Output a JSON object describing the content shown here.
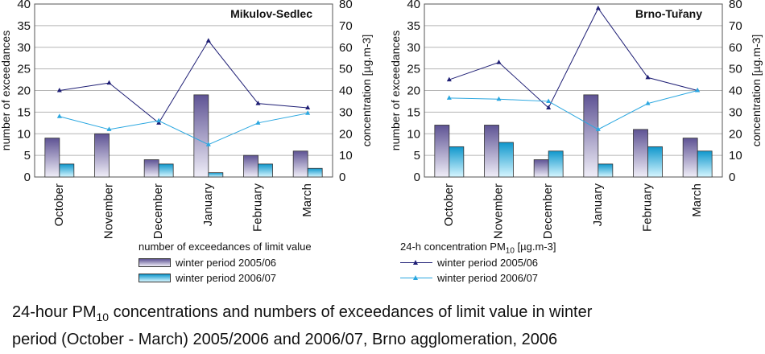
{
  "chart_data": [
    {
      "type": "bar+line",
      "title": "Mikulov-Sedlec",
      "categories": [
        "October",
        "November",
        "December",
        "January",
        "February",
        "March"
      ],
      "ylabel_left": "number of exceedances",
      "ylabel_right": "concentration [µg.m-3]",
      "ylim_left": [
        0,
        40
      ],
      "ylim_right": [
        0,
        80
      ],
      "yticks_left": [
        "0",
        "5",
        "10",
        "15",
        "20",
        "25",
        "30",
        "35",
        "40"
      ],
      "yticks_right": [
        "0",
        "10",
        "20",
        "30",
        "40",
        "50",
        "60",
        "70",
        "80"
      ],
      "bars": [
        {
          "name": "winter period 2005/06",
          "values": [
            9,
            10,
            4,
            19,
            5,
            6
          ]
        },
        {
          "name": "winter period 2006/07",
          "values": [
            3,
            0,
            3,
            1,
            3,
            2
          ]
        }
      ],
      "lines": [
        {
          "name": "winter period 2005/06",
          "values": [
            40,
            43.5,
            25,
            63,
            34,
            32
          ]
        },
        {
          "name": "winter period 2006/07",
          "values": [
            28,
            22,
            26,
            15,
            25,
            29.5
          ]
        }
      ]
    },
    {
      "type": "bar+line",
      "title": "Brno-Tuřany",
      "categories": [
        "October",
        "November",
        "December",
        "January",
        "February",
        "March"
      ],
      "ylabel_left": "number of exceedances",
      "ylabel_right": "concentration [µg.m-3]",
      "ylim_left": [
        0,
        40
      ],
      "ylim_right": [
        0,
        80
      ],
      "yticks_left": [
        "0",
        "5",
        "10",
        "15",
        "20",
        "25",
        "30",
        "35",
        "40"
      ],
      "yticks_right": [
        "0",
        "10",
        "20",
        "30",
        "40",
        "50",
        "60",
        "70",
        "80"
      ],
      "bars": [
        {
          "name": "winter period 2005/06",
          "values": [
            12,
            12,
            4,
            19,
            11,
            9
          ]
        },
        {
          "name": "winter period 2006/07",
          "values": [
            7,
            8,
            6,
            3,
            7,
            6
          ]
        }
      ],
      "lines": [
        {
          "name": "winter period 2005/06",
          "values": [
            45,
            53,
            32,
            78,
            46,
            40
          ]
        },
        {
          "name": "winter period 2006/07",
          "values": [
            36.5,
            36,
            35,
            22,
            34,
            40
          ]
        }
      ]
    }
  ],
  "legend": {
    "bars_title": "number of exceedances of limit value",
    "bars_items": [
      "winter period 2005/06",
      "winter period 2006/07"
    ],
    "lines_title_prefix": "24-h concentration PM",
    "lines_title_sub": "10",
    "lines_title_suffix": " [µg.m-3]",
    "lines_items": [
      "winter period 2005/06",
      "winter period 2006/07"
    ]
  },
  "caption": {
    "line1_prefix": "24-hour PM",
    "line1_sub": "10",
    "line1_suffix": " concentrations and numbers of exceedances of limit value in winter",
    "line2": "period (October - March) 2005/2006 and 2006/07, Brno agglomeration, 2006"
  },
  "colors": {
    "bar_2005": "#7a6fa8",
    "bar_2005_light": "#ece9f5",
    "bar_2006": "#1aa7d6",
    "bar_2006_light": "#c9f1ff",
    "line_2005": "#1f1f75",
    "line_2006": "#2aa7e0"
  }
}
